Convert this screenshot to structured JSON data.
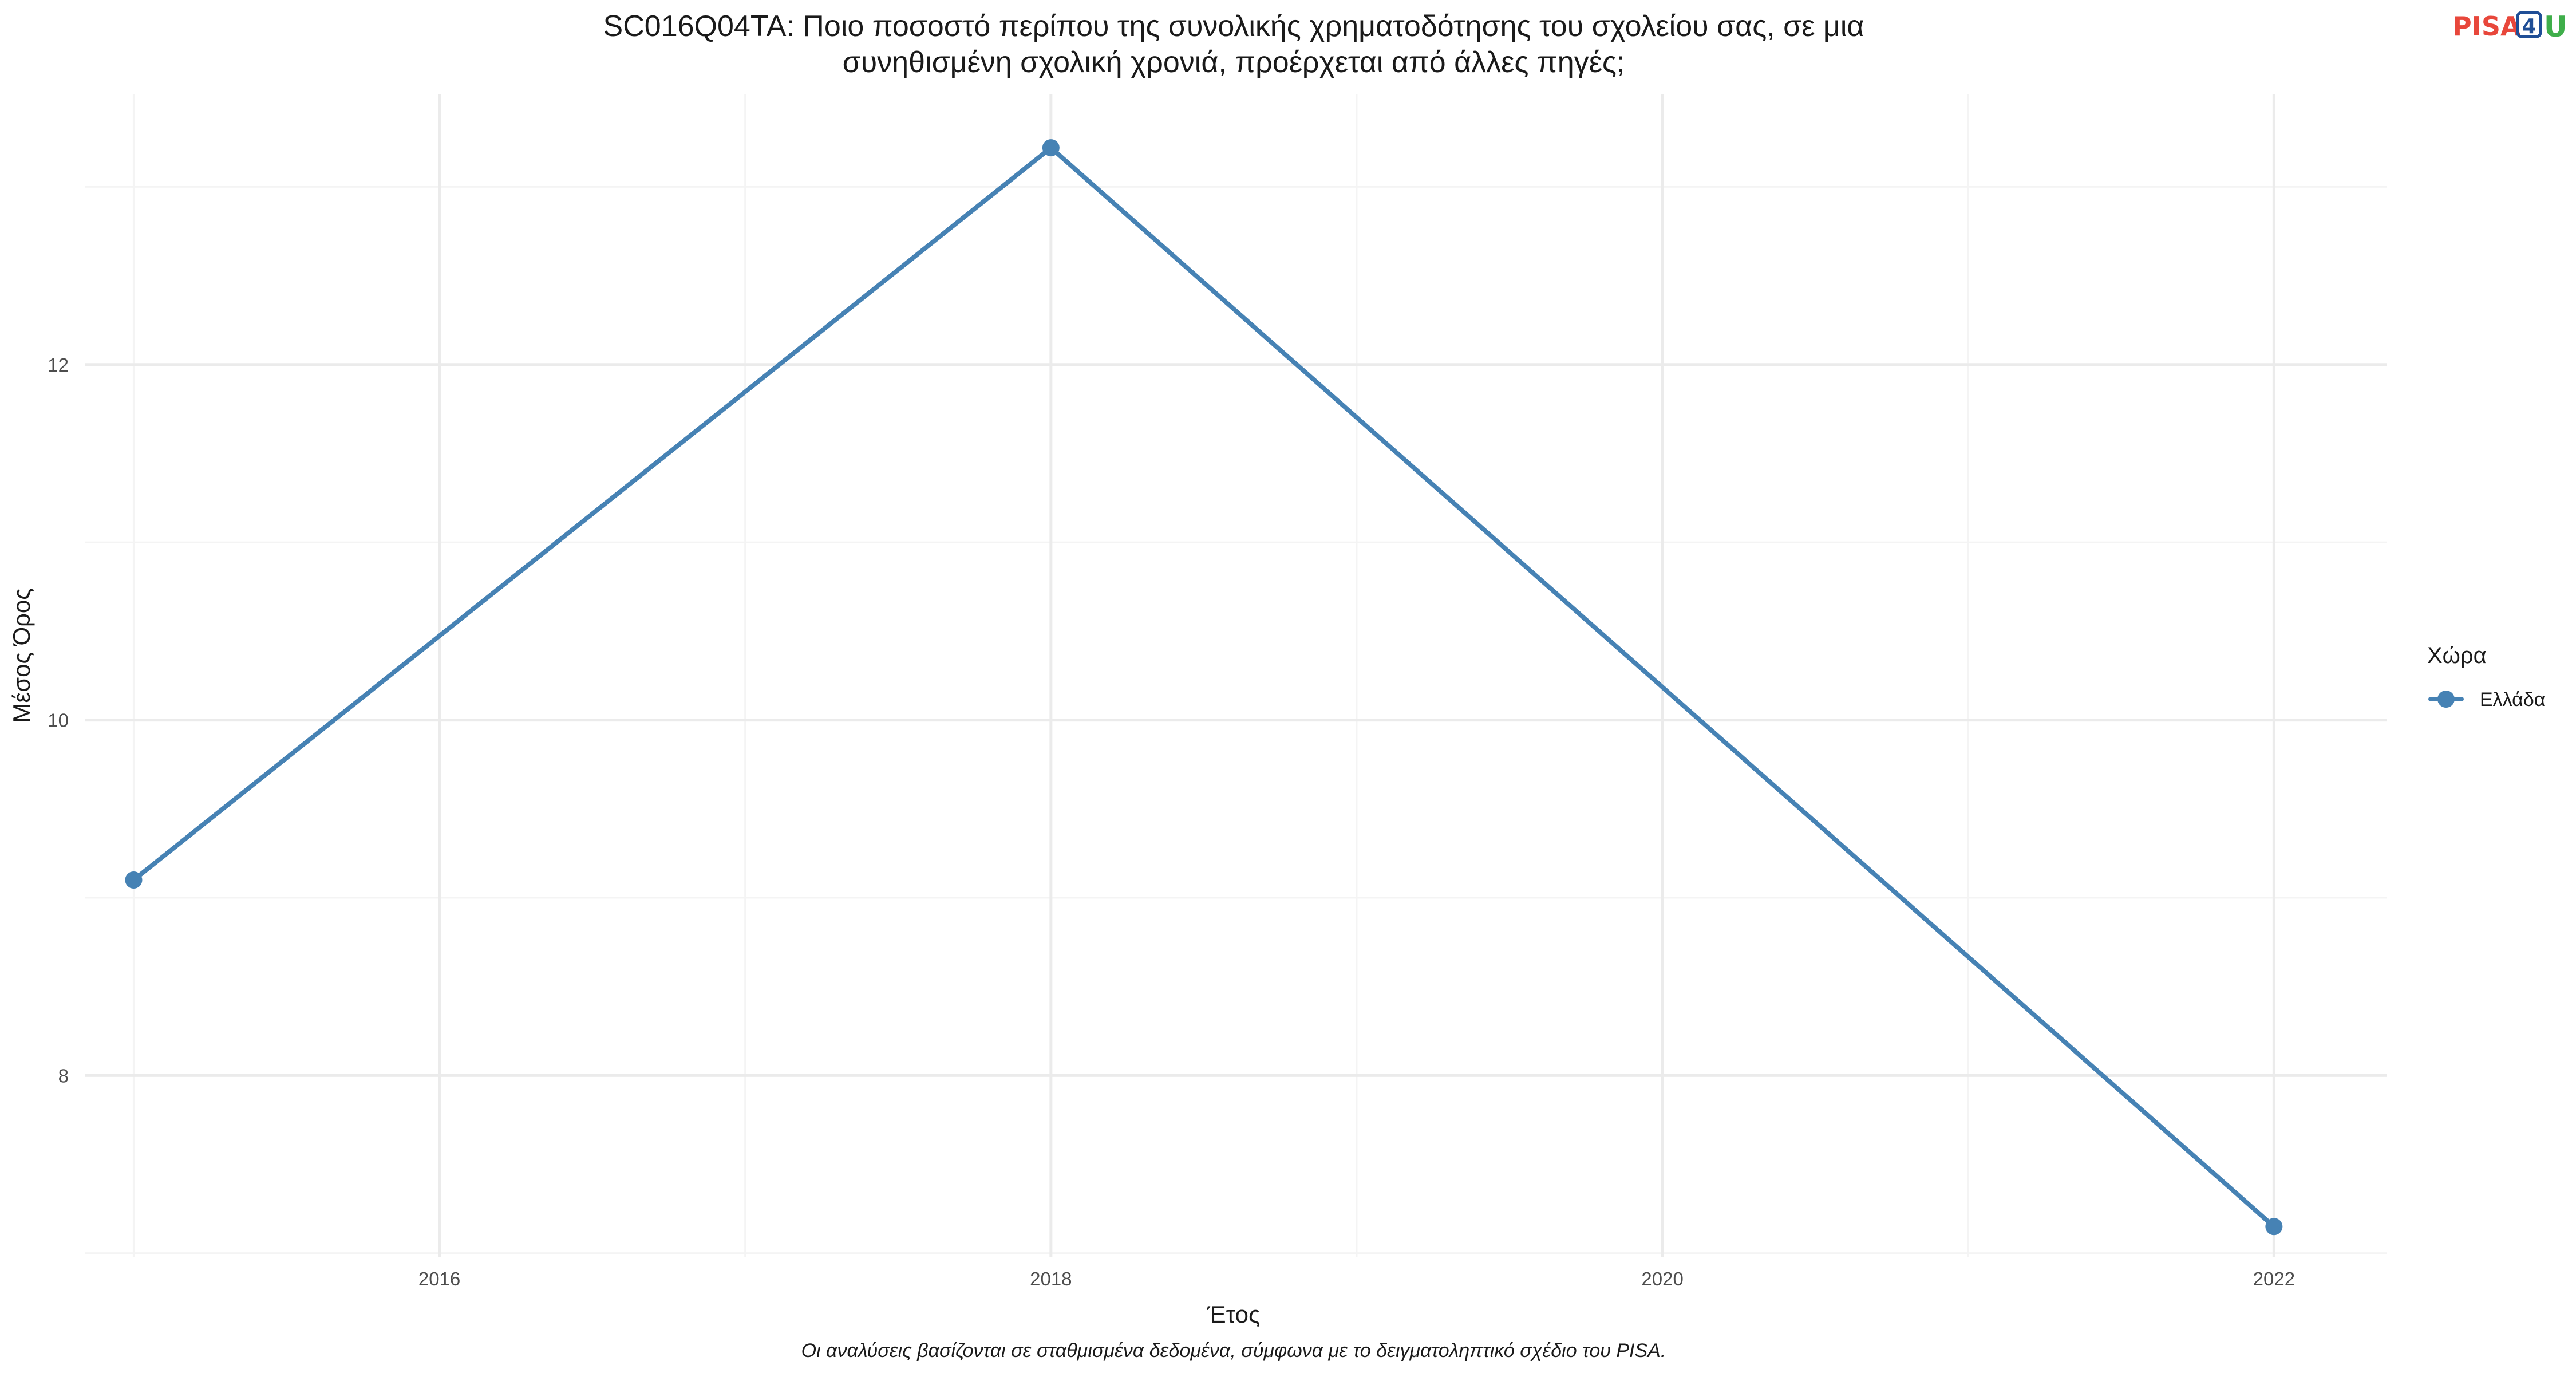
{
  "chart_data": {
    "type": "line",
    "title_lines": [
      "SC016Q04TA: Ποιο ποσοστό περίπου της συνολικής χρηματοδότησης του σχολείου σας, σε μια",
      "συνηθισμένη σχολική χρονιά, προέρχεται από άλλες πηγές;"
    ],
    "xlabel": "Έτος",
    "ylabel": "Μέσος Όρος",
    "caption": "Οι αναλύσεις βασίζονται σε σταθμισμένα δεδομένα, σύμφωνα με το δειγματοληπτικό σχέδιο του PISA.",
    "x": [
      2015,
      2018,
      2022
    ],
    "series": [
      {
        "name": "Ελλάδα",
        "color": "#4682b4",
        "values": [
          9.1,
          13.22,
          7.15
        ]
      }
    ],
    "xlim": [
      2014.84,
      2022.37
    ],
    "ylim": [
      6.98,
      13.52
    ],
    "x_ticks": [
      2016,
      2018,
      2020,
      2022
    ],
    "y_ticks": [
      8,
      10,
      12
    ],
    "grid": true,
    "legend_title": "Χώρα",
    "legend_position": "right"
  },
  "logo": {
    "part1": "PISA",
    "part2": "4",
    "part3": "U",
    "color1": "#e8473b",
    "color2": "#1f4e96",
    "color3": "#3fae4a"
  },
  "colors": {
    "grid_major": "#ebebeb",
    "grid_minor": "#f4f4f4",
    "tick_text": "#4d4d4d",
    "text": "#1a1a1a"
  }
}
